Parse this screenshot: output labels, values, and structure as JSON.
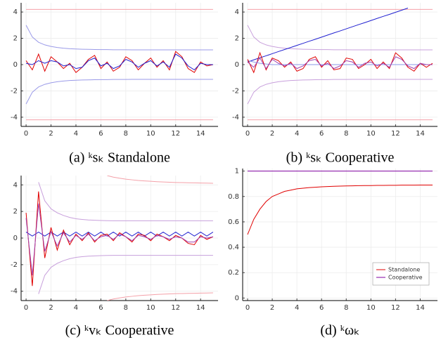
{
  "chart_data": [
    {
      "type": "line",
      "caption": "(a) ᵏsₖ Standalone",
      "x": [
        0,
        0.5,
        1,
        1.5,
        2,
        2.5,
        3,
        3.5,
        4,
        4.5,
        5,
        5.5,
        6,
        6.5,
        7,
        7.5,
        8,
        8.5,
        9,
        9.5,
        10,
        10.5,
        11,
        11.5,
        12,
        12.5,
        13,
        13.5,
        14,
        14.5,
        15
      ],
      "xlim": [
        -0.4,
        15.4
      ],
      "ylim": [
        -4.7,
        4.7
      ],
      "xticks": [
        0,
        2,
        4,
        6,
        8,
        10,
        12,
        14
      ],
      "yticks": [
        -4,
        -2,
        0,
        2,
        4
      ],
      "grid": true,
      "series": [
        {
          "color": "#f4a0a8",
          "values": [
            4.2,
            4.2,
            4.2,
            4.2,
            4.2,
            4.2,
            4.2,
            4.2,
            4.2,
            4.2,
            4.2,
            4.2,
            4.2,
            4.2,
            4.2,
            4.2,
            4.2,
            4.2,
            4.2,
            4.2,
            4.2,
            4.2,
            4.2,
            4.2,
            4.2,
            4.2,
            4.2,
            4.2,
            4.2,
            4.2,
            4.2
          ]
        },
        {
          "color": "#f4a0a8",
          "values": [
            -4.2,
            -4.2,
            -4.2,
            -4.2,
            -4.2,
            -4.2,
            -4.2,
            -4.2,
            -4.2,
            -4.2,
            -4.2,
            -4.2,
            -4.2,
            -4.2,
            -4.2,
            -4.2,
            -4.2,
            -4.2,
            -4.2,
            -4.2,
            -4.2,
            -4.2,
            -4.2,
            -4.2,
            -4.2,
            -4.2,
            -4.2,
            -4.2,
            -4.2,
            -4.2,
            -4.2
          ]
        },
        {
          "color": "#9a9ae8",
          "values": [
            3.0,
            2.1,
            1.7,
            1.5,
            1.38,
            1.3,
            1.25,
            1.21,
            1.19,
            1.17,
            1.16,
            1.15,
            1.14,
            1.14,
            1.13,
            1.13,
            1.13,
            1.12,
            1.12,
            1.12,
            1.12,
            1.12,
            1.12,
            1.12,
            1.12,
            1.12,
            1.12,
            1.12,
            1.12,
            1.12,
            1.12
          ]
        },
        {
          "color": "#9a9ae8",
          "values": [
            -3.0,
            -2.1,
            -1.7,
            -1.5,
            -1.38,
            -1.3,
            -1.25,
            -1.21,
            -1.19,
            -1.17,
            -1.16,
            -1.15,
            -1.14,
            -1.14,
            -1.13,
            -1.13,
            -1.13,
            -1.12,
            -1.12,
            -1.12,
            -1.12,
            -1.12,
            -1.12,
            -1.12,
            -1.12,
            -1.12,
            -1.12,
            -1.12,
            -1.12,
            -1.12,
            -1.12
          ]
        },
        {
          "color": "#e00000",
          "values": [
            0.3,
            -0.4,
            0.8,
            -0.5,
            0.6,
            0.2,
            -0.3,
            0.1,
            -0.6,
            -0.2,
            0.4,
            0.7,
            -0.3,
            0.2,
            -0.5,
            -0.2,
            0.6,
            0.3,
            -0.4,
            0.1,
            0.5,
            -0.2,
            0.3,
            -0.4,
            1.0,
            0.6,
            -0.3,
            -0.6,
            0.2,
            -0.1,
            0.0
          ]
        },
        {
          "color": "#2020d0",
          "values": [
            0.1,
            0.0,
            0.3,
            0.1,
            0.3,
            0.2,
            -0.1,
            0.0,
            -0.3,
            -0.2,
            0.3,
            0.5,
            -0.1,
            0.1,
            -0.3,
            -0.1,
            0.4,
            0.2,
            -0.2,
            0.1,
            0.3,
            -0.1,
            0.2,
            -0.2,
            0.8,
            0.5,
            -0.1,
            -0.4,
            0.1,
            0.0,
            0.0
          ]
        }
      ]
    },
    {
      "type": "line",
      "caption": "(b) ᵏsₖ Cooperative",
      "x": [
        0,
        0.5,
        1,
        1.5,
        2,
        2.5,
        3,
        3.5,
        4,
        4.5,
        5,
        5.5,
        6,
        6.5,
        7,
        7.5,
        8,
        8.5,
        9,
        9.5,
        10,
        10.5,
        11,
        11.5,
        12,
        12.5,
        13,
        13.5,
        14,
        14.5,
        15
      ],
      "xlim": [
        -0.4,
        15.4
      ],
      "ylim": [
        -4.7,
        4.7
      ],
      "xticks": [
        0,
        2,
        4,
        6,
        8,
        10,
        12,
        14
      ],
      "yticks": [
        -4,
        -2,
        0,
        2,
        4
      ],
      "grid": true,
      "series": [
        {
          "color": "#f4a0a8",
          "values": [
            4.2,
            4.2,
            4.2,
            4.2,
            4.2,
            4.2,
            4.2,
            4.2,
            4.2,
            4.2,
            4.2,
            4.2,
            4.2,
            4.2,
            4.2,
            4.2,
            4.2,
            4.2,
            4.2,
            4.2,
            4.2,
            4.2,
            4.2,
            4.2,
            4.2,
            4.2,
            4.2,
            4.2,
            4.2,
            4.2,
            4.2
          ]
        },
        {
          "color": "#f4a0a8",
          "values": [
            -4.2,
            -4.2,
            -4.2,
            -4.2,
            -4.2,
            -4.2,
            -4.2,
            -4.2,
            -4.2,
            -4.2,
            -4.2,
            -4.2,
            -4.2,
            -4.2,
            -4.2,
            -4.2,
            -4.2,
            -4.2,
            -4.2,
            -4.2,
            -4.2,
            -4.2,
            -4.2,
            -4.2,
            -4.2,
            -4.2,
            -4.2,
            -4.2,
            -4.2,
            -4.2,
            -4.2
          ]
        },
        {
          "color": "#c8a0dc",
          "values": [
            3.0,
            2.1,
            1.7,
            1.5,
            1.38,
            1.3,
            1.25,
            1.21,
            1.19,
            1.17,
            1.16,
            1.15,
            1.14,
            1.14,
            1.13,
            1.13,
            1.13,
            1.12,
            1.12,
            1.12,
            1.12,
            1.12,
            1.12,
            1.12,
            1.12,
            1.12,
            1.12,
            1.12,
            1.12,
            1.12,
            1.12
          ]
        },
        {
          "color": "#c8a0dc",
          "values": [
            -3.0,
            -2.1,
            -1.7,
            -1.5,
            -1.38,
            -1.3,
            -1.25,
            -1.21,
            -1.19,
            -1.17,
            -1.16,
            -1.15,
            -1.14,
            -1.14,
            -1.13,
            -1.13,
            -1.13,
            -1.12,
            -1.12,
            -1.12,
            -1.12,
            -1.12,
            -1.12,
            -1.12,
            -1.12,
            -1.12,
            -1.12,
            -1.12,
            -1.12,
            -1.12,
            -1.12
          ]
        },
        {
          "color": "#2020d0",
          "values": [
            0.2,
            0.36,
            0.52,
            0.67,
            0.83,
            0.99,
            1.15,
            1.3,
            1.46,
            1.62,
            1.78,
            1.93,
            2.09,
            2.25,
            2.41,
            2.56,
            2.72,
            2.88,
            3.04,
            3.19,
            3.35,
            3.51,
            3.67,
            3.82,
            3.98,
            4.14,
            4.3,
            null,
            null,
            null,
            null
          ]
        },
        {
          "color": "#8a9ae8",
          "values": [
            0.3,
            0.2,
            0.1,
            0.05,
            0.0,
            0.0,
            0.0,
            0.0,
            0.0,
            0.0,
            0.0,
            0.0,
            0.0,
            0.0,
            0.0,
            0.0,
            0.0,
            0.0,
            0.0,
            0.0,
            0.0,
            0.0,
            0.0,
            0.0,
            0.0,
            0.0,
            0.0,
            0.0,
            0.0,
            0.0,
            0.0
          ]
        },
        {
          "color": "#e00000",
          "values": [
            0.4,
            -0.6,
            0.9,
            -0.4,
            0.5,
            0.3,
            -0.2,
            0.2,
            -0.5,
            -0.3,
            0.4,
            0.6,
            -0.2,
            0.3,
            -0.4,
            -0.3,
            0.5,
            0.4,
            -0.3,
            0.0,
            0.4,
            -0.3,
            0.2,
            -0.3,
            0.9,
            0.5,
            -0.2,
            -0.5,
            0.1,
            -0.2,
            0.1
          ]
        },
        {
          "color": "#a040b0",
          "values": [
            0.2,
            -0.2,
            0.5,
            -0.3,
            0.4,
            0.1,
            -0.1,
            0.1,
            -0.3,
            -0.1,
            0.3,
            0.4,
            -0.1,
            0.1,
            -0.3,
            -0.1,
            0.3,
            0.2,
            -0.2,
            0.1,
            0.2,
            -0.1,
            0.1,
            -0.2,
            0.6,
            0.4,
            -0.1,
            -0.3,
            0.1,
            0.0,
            0.0
          ]
        }
      ]
    },
    {
      "type": "line",
      "caption": "(c) ᵏvₖ Cooperative",
      "x": [
        0,
        0.5,
        1,
        1.5,
        2,
        2.5,
        3,
        3.5,
        4,
        4.5,
        5,
        5.5,
        6,
        6.5,
        7,
        7.5,
        8,
        8.5,
        9,
        9.5,
        10,
        10.5,
        11,
        11.5,
        12,
        12.5,
        13,
        13.5,
        14,
        14.5,
        15
      ],
      "xlim": [
        -0.4,
        15.4
      ],
      "ylim": [
        -4.7,
        4.7
      ],
      "xticks": [
        0,
        2,
        4,
        6,
        8,
        10,
        12,
        14
      ],
      "yticks": [
        -4,
        -2,
        0,
        2,
        4
      ],
      "grid": true,
      "series": [
        {
          "color": "#f4a0a8",
          "values": [
            null,
            null,
            null,
            null,
            null,
            null,
            null,
            null,
            null,
            null,
            null,
            null,
            null,
            4.7,
            4.58,
            4.5,
            4.43,
            4.38,
            4.33,
            4.3,
            4.27,
            4.24,
            4.22,
            4.2,
            4.18,
            4.17,
            4.16,
            4.15,
            4.14,
            4.13,
            4.12
          ]
        },
        {
          "color": "#f4a0a8",
          "values": [
            null,
            null,
            null,
            null,
            null,
            null,
            null,
            null,
            null,
            null,
            null,
            null,
            null,
            -4.7,
            -4.58,
            -4.5,
            -4.43,
            -4.38,
            -4.33,
            -4.3,
            -4.27,
            -4.24,
            -4.22,
            -4.2,
            -4.18,
            -4.17,
            -4.16,
            -4.15,
            -4.14,
            -4.13,
            -4.12
          ]
        },
        {
          "color": "#c8a0dc",
          "values": [
            null,
            null,
            4.2,
            2.8,
            2.2,
            1.9,
            1.7,
            1.55,
            1.45,
            1.4,
            1.36,
            1.34,
            1.32,
            1.31,
            1.3,
            1.3,
            1.3,
            1.3,
            1.3,
            1.3,
            1.3,
            1.3,
            1.3,
            1.3,
            1.3,
            1.3,
            1.3,
            1.3,
            1.3,
            1.3,
            1.3
          ]
        },
        {
          "color": "#c8a0dc",
          "values": [
            null,
            null,
            -4.2,
            -2.8,
            -2.2,
            -1.9,
            -1.7,
            -1.55,
            -1.45,
            -1.4,
            -1.36,
            -1.34,
            -1.32,
            -1.31,
            -1.3,
            -1.3,
            -1.3,
            -1.3,
            -1.3,
            -1.3,
            -1.3,
            -1.3,
            -1.3,
            -1.3,
            -1.3,
            -1.3,
            -1.3,
            -1.3,
            -1.3,
            -1.3,
            -1.3
          ]
        },
        {
          "color": "#2020d0",
          "values": [
            0.45,
            0.15,
            0.45,
            0.15,
            0.45,
            0.15,
            0.45,
            0.15,
            0.45,
            0.15,
            0.45,
            0.15,
            0.45,
            0.15,
            0.45,
            0.15,
            0.45,
            0.15,
            0.45,
            0.15,
            0.45,
            0.15,
            0.45,
            0.15,
            0.45,
            0.15,
            0.45,
            0.15,
            0.45,
            0.15,
            0.45
          ]
        },
        {
          "color": "#e00000",
          "values": [
            1.9,
            -3.6,
            3.5,
            -1.5,
            0.8,
            -0.9,
            0.6,
            -0.5,
            0.3,
            -0.2,
            0.4,
            -0.3,
            0.2,
            0.3,
            -0.2,
            0.4,
            0.1,
            -0.3,
            0.3,
            0.2,
            -0.2,
            0.3,
            0.1,
            -0.2,
            0.2,
            0.0,
            -0.4,
            -0.5,
            0.2,
            -0.1,
            0.1
          ]
        },
        {
          "color": "#a040b0",
          "values": [
            1.5,
            -2.8,
            2.6,
            -1.0,
            0.5,
            -0.6,
            0.4,
            -0.3,
            0.2,
            -0.1,
            0.3,
            -0.2,
            0.1,
            0.2,
            -0.1,
            0.3,
            0.1,
            -0.2,
            0.2,
            0.1,
            -0.1,
            0.2,
            0.1,
            -0.1,
            0.1,
            0.0,
            -0.3,
            -0.3,
            0.1,
            0.0,
            0.1
          ]
        }
      ]
    },
    {
      "type": "line",
      "caption": "(d) ᵏωₖ",
      "x": [
        0,
        0.5,
        1,
        1.5,
        2,
        2.5,
        3,
        3.5,
        4,
        4.5,
        5,
        5.5,
        6,
        6.5,
        7,
        7.5,
        8,
        8.5,
        9,
        9.5,
        10,
        10.5,
        11,
        11.5,
        12,
        12.5,
        13,
        13.5,
        14,
        14.5,
        15
      ],
      "xlim": [
        -0.4,
        15.4
      ],
      "ylim": [
        -0.02,
        1.02
      ],
      "xticks": [
        0,
        2,
        4,
        6,
        8,
        10,
        12,
        14
      ],
      "yticks": [
        0,
        0.2,
        0.4,
        0.6,
        0.8,
        1
      ],
      "grid": true,
      "legend": "lower right",
      "series": [
        {
          "name": "Standalone",
          "color": "#e00000",
          "values": [
            0.5,
            0.62,
            0.7,
            0.76,
            0.8,
            0.82,
            0.84,
            0.85,
            0.86,
            0.865,
            0.87,
            0.873,
            0.876,
            0.878,
            0.88,
            0.882,
            0.883,
            0.884,
            0.885,
            0.886,
            0.886,
            0.887,
            0.887,
            0.888,
            0.888,
            0.889,
            0.889,
            0.889,
            0.89,
            0.89,
            0.89
          ]
        },
        {
          "name": "Cooperative",
          "color": "#8000a0",
          "values": [
            1,
            1,
            1,
            1,
            1,
            1,
            1,
            1,
            1,
            1,
            1,
            1,
            1,
            1,
            1,
            1,
            1,
            1,
            1,
            1,
            1,
            1,
            1,
            1,
            1,
            1,
            1,
            1,
            1,
            1,
            1
          ]
        }
      ]
    }
  ]
}
